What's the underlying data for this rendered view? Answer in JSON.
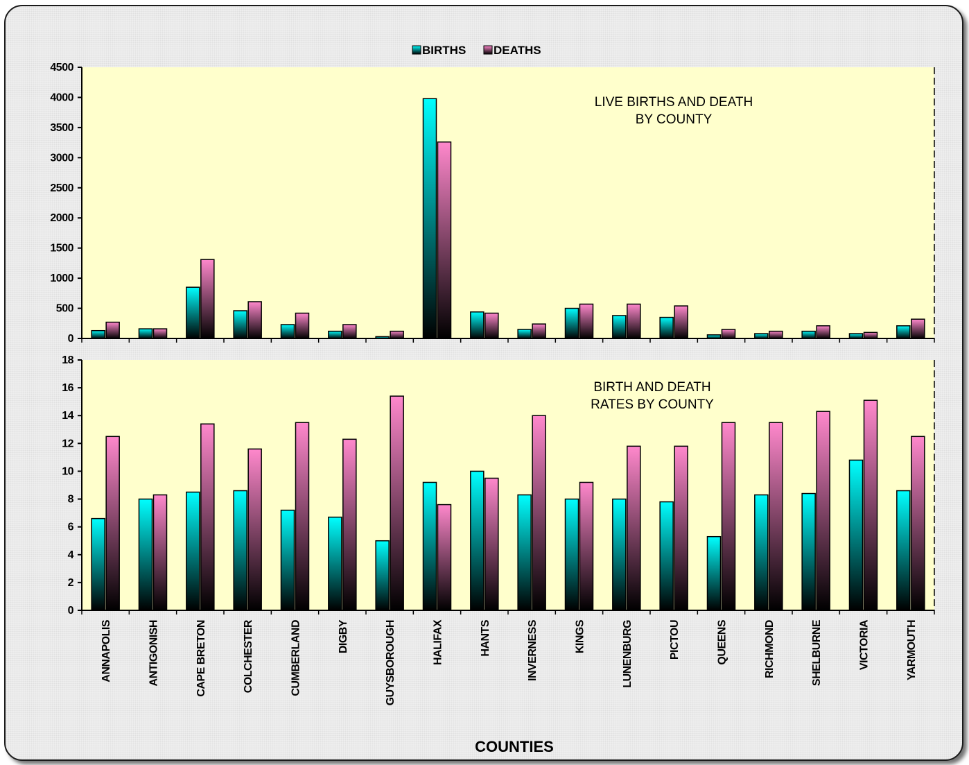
{
  "colors": {
    "births": "#00ffff",
    "deaths": "#ff88cc",
    "plot_bg": "#ffffcc",
    "page_bg": "#f1f1f1"
  },
  "legend": {
    "births": "BIRTHS",
    "deaths": "DEATHS"
  },
  "xlabel": "COUNTIES",
  "chart_data": [
    {
      "type": "bar",
      "annotation": [
        "LIVE BIRTHS  AND DEATH",
        "BY COUNTY"
      ],
      "categories": [
        "ANNAPOLIS",
        "ANTIGONISH",
        "CAPE BRETON",
        "COLCHESTER",
        "CUMBERLAND",
        "DIGBY",
        "GUYSBOROUGH",
        "HALIFAX",
        "HANTS",
        "INVERNESS",
        "KINGS",
        "LUNENBURG",
        "PICTOU",
        "QUEENS",
        "RICHMOND",
        "SHELBURNE",
        "VICTORIA",
        "YARMOUTH"
      ],
      "series": [
        {
          "name": "BIRTHS",
          "values": [
            130,
            160,
            850,
            460,
            230,
            120,
            30,
            3980,
            440,
            150,
            500,
            380,
            350,
            60,
            80,
            120,
            80,
            210
          ]
        },
        {
          "name": "DEATHS",
          "values": [
            270,
            160,
            1310,
            610,
            420,
            230,
            120,
            3260,
            420,
            240,
            570,
            570,
            540,
            150,
            120,
            210,
            100,
            320
          ]
        }
      ],
      "ylim": [
        0,
        4500
      ],
      "yticks": [
        0,
        500,
        1000,
        1500,
        2000,
        2500,
        3000,
        3500,
        4000,
        4500
      ]
    },
    {
      "type": "bar",
      "annotation": [
        "BIRTH  AND DEATH",
        "RATES BY COUNTY"
      ],
      "categories": [
        "ANNAPOLIS",
        "ANTIGONISH",
        "CAPE BRETON",
        "COLCHESTER",
        "CUMBERLAND",
        "DIGBY",
        "GUYSBOROUGH",
        "HALIFAX",
        "HANTS",
        "INVERNESS",
        "KINGS",
        "LUNENBURG",
        "PICTOU",
        "QUEENS",
        "RICHMOND",
        "SHELBURNE",
        "VICTORIA",
        "YARMOUTH"
      ],
      "series": [
        {
          "name": "BIRTHS",
          "values": [
            6.6,
            8.0,
            8.5,
            8.6,
            7.2,
            6.7,
            5.0,
            9.2,
            10.0,
            8.3,
            8.0,
            8.0,
            7.8,
            5.3,
            8.3,
            8.4,
            10.8,
            8.6
          ]
        },
        {
          "name": "DEATHS",
          "values": [
            12.5,
            8.3,
            13.4,
            11.6,
            13.5,
            12.3,
            15.4,
            7.6,
            9.5,
            14.0,
            9.2,
            11.8,
            11.8,
            13.5,
            13.5,
            14.3,
            15.1,
            12.5
          ]
        }
      ],
      "ylim": [
        0,
        18
      ],
      "yticks": [
        0,
        2,
        4,
        6,
        8,
        10,
        12,
        14,
        16,
        18
      ]
    }
  ]
}
